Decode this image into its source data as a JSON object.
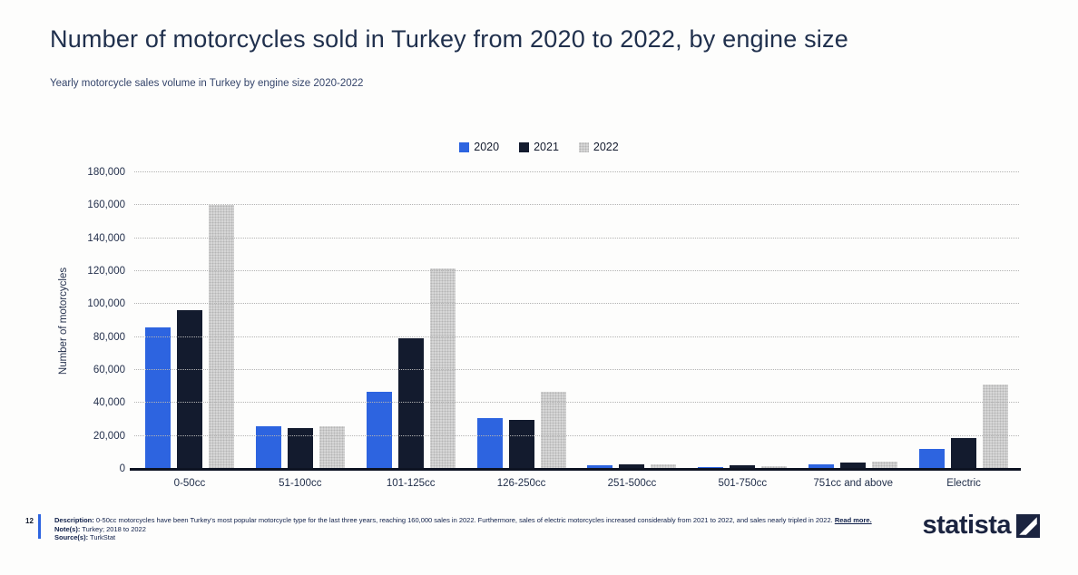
{
  "header": {
    "title": "Number of motorcycles sold in Turkey from 2020 to 2022, by engine size",
    "subtitle": "Yearly motorcycle sales volume in Turkey by engine size 2020-2022"
  },
  "chart_data": {
    "type": "bar",
    "title": "Number of motorcycles sold in Turkey from 2020 to 2022, by engine size",
    "categories": [
      "0-50cc",
      "51-100cc",
      "101-125cc",
      "126-250cc",
      "251-500cc",
      "501-750cc",
      "751cc and above",
      "Electric"
    ],
    "series": [
      {
        "name": "2020",
        "color": "#2d64e0",
        "values": [
          86000,
          26000,
          47000,
          31000,
          2000,
          1000,
          3000,
          12000
        ]
      },
      {
        "name": "2021",
        "color": "#131b2e",
        "values": [
          96500,
          25000,
          79000,
          30000,
          2500,
          2000,
          4000,
          18500
        ]
      },
      {
        "name": "2022",
        "color": "#cfcfcf",
        "values": [
          160000,
          26000,
          121500,
          47000,
          3000,
          1800,
          4500,
          51000
        ]
      }
    ],
    "xlabel": "",
    "ylabel": "Number of motorcycles",
    "ylim": [
      0,
      180000
    ],
    "ytick_step": 20000,
    "grid": true,
    "gridline_style": "dotted",
    "legend_position": "top-center"
  },
  "footer": {
    "page_number": "12",
    "description_label": "Description:",
    "description_text": "0-50cc motorcycles have been Turkey's most popular motorcycle type for the last three years, reaching 160,000 sales in 2022. Furthermore, sales of electric motorcycles increased considerably from 2021 to 2022, and sales nearly tripled in 2022.",
    "read_more_label": "Read more.",
    "notes_label": "Note(s):",
    "notes_text": "Turkey; 2018 to 2022",
    "source_label": "Source(s):",
    "source_text": "TurkStat",
    "brand": "statista"
  }
}
